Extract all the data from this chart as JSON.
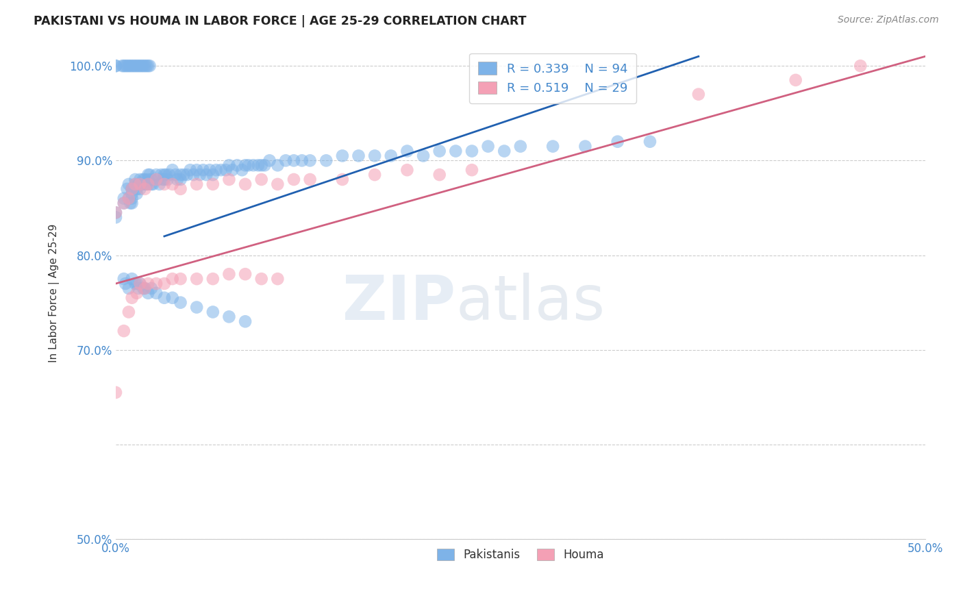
{
  "title": "PAKISTANI VS HOUMA IN LABOR FORCE | AGE 25-29 CORRELATION CHART",
  "source": "Source: ZipAtlas.com",
  "ylabel_label": "In Labor Force | Age 25-29",
  "xlim": [
    0.0,
    0.5
  ],
  "ylim": [
    0.5,
    1.02
  ],
  "xticks": [
    0.0,
    0.1,
    0.2,
    0.3,
    0.4,
    0.5
  ],
  "yticks": [
    0.5,
    0.6,
    0.7,
    0.8,
    0.9,
    1.0
  ],
  "xtick_labels": [
    "0.0%",
    "",
    "",
    "",
    "",
    "50.0%"
  ],
  "ytick_labels": [
    "50.0%",
    "",
    "70.0%",
    "80.0%",
    "90.0%",
    "100.0%"
  ],
  "blue_color": "#7EB3E8",
  "pink_color": "#F4A0B5",
  "blue_line_color": "#2060B0",
  "pink_line_color": "#D06080",
  "legend_R_blue": "R = 0.339",
  "legend_N_blue": "N = 94",
  "legend_R_pink": "R = 0.519",
  "legend_N_pink": "N = 29",
  "blue_line_x": [
    0.03,
    0.36
  ],
  "blue_line_y": [
    0.82,
    1.01
  ],
  "pink_line_x": [
    0.0,
    0.5
  ],
  "pink_line_y": [
    0.77,
    1.01
  ],
  "pakistanis_x": [
    0.0,
    0.0,
    0.005,
    0.005,
    0.007,
    0.008,
    0.008,
    0.009,
    0.01,
    0.01,
    0.01,
    0.01,
    0.01,
    0.012,
    0.012,
    0.013,
    0.013,
    0.014,
    0.015,
    0.015,
    0.015,
    0.016,
    0.017,
    0.018,
    0.018,
    0.019,
    0.02,
    0.02,
    0.02,
    0.021,
    0.022,
    0.022,
    0.023,
    0.025,
    0.026,
    0.027,
    0.028,
    0.029,
    0.03,
    0.03,
    0.031,
    0.032,
    0.033,
    0.035,
    0.037,
    0.038,
    0.04,
    0.04,
    0.042,
    0.044,
    0.046,
    0.048,
    0.05,
    0.052,
    0.054,
    0.056,
    0.058,
    0.06,
    0.062,
    0.065,
    0.068,
    0.07,
    0.072,
    0.075,
    0.078,
    0.08,
    0.082,
    0.085,
    0.088,
    0.09,
    0.092,
    0.095,
    0.1,
    0.105,
    0.11,
    0.115,
    0.12,
    0.13,
    0.14,
    0.15,
    0.16,
    0.17,
    0.18,
    0.19,
    0.2,
    0.21,
    0.22,
    0.23,
    0.24,
    0.25,
    0.27,
    0.29,
    0.31,
    0.33
  ],
  "pakistanis_y": [
    0.845,
    0.84,
    0.855,
    0.86,
    0.87,
    0.875,
    0.86,
    0.855,
    0.87,
    0.865,
    0.86,
    0.855,
    0.87,
    0.875,
    0.88,
    0.87,
    0.865,
    0.875,
    0.88,
    0.875,
    0.87,
    0.875,
    0.88,
    0.875,
    0.88,
    0.875,
    0.885,
    0.88,
    0.875,
    0.885,
    0.875,
    0.88,
    0.875,
    0.885,
    0.88,
    0.875,
    0.885,
    0.88,
    0.885,
    0.88,
    0.885,
    0.88,
    0.885,
    0.89,
    0.885,
    0.88,
    0.885,
    0.88,
    0.885,
    0.885,
    0.89,
    0.885,
    0.89,
    0.885,
    0.89,
    0.885,
    0.89,
    0.885,
    0.89,
    0.89,
    0.89,
    0.895,
    0.89,
    0.895,
    0.89,
    0.895,
    0.895,
    0.895,
    0.895,
    0.895,
    0.895,
    0.9,
    0.895,
    0.9,
    0.9,
    0.9,
    0.9,
    0.9,
    0.905,
    0.905,
    0.905,
    0.905,
    0.91,
    0.905,
    0.91,
    0.91,
    0.91,
    0.915,
    0.91,
    0.915,
    0.915,
    0.915,
    0.92,
    0.92
  ],
  "pakistanis_top_x": [
    0.0,
    0.0,
    0.004,
    0.005,
    0.006,
    0.007,
    0.008,
    0.009,
    0.01,
    0.011,
    0.012,
    0.013,
    0.014,
    0.015,
    0.016,
    0.017,
    0.018,
    0.019,
    0.02,
    0.021
  ],
  "pakistanis_top_y": [
    1.0,
    1.0,
    1.0,
    1.0,
    1.0,
    1.0,
    1.0,
    1.0,
    1.0,
    1.0,
    1.0,
    1.0,
    1.0,
    1.0,
    1.0,
    1.0,
    1.0,
    1.0,
    1.0,
    1.0
  ],
  "pakistanis_low_x": [
    0.005,
    0.006,
    0.008,
    0.01,
    0.012,
    0.013,
    0.014,
    0.015,
    0.017,
    0.018,
    0.02,
    0.022,
    0.025,
    0.03,
    0.035,
    0.04,
    0.05,
    0.06,
    0.07,
    0.08
  ],
  "pakistanis_low_y": [
    0.775,
    0.77,
    0.765,
    0.775,
    0.77,
    0.77,
    0.765,
    0.77,
    0.765,
    0.765,
    0.76,
    0.765,
    0.76,
    0.755,
    0.755,
    0.75,
    0.745,
    0.74,
    0.735,
    0.73
  ],
  "houma_x": [
    0.0,
    0.005,
    0.008,
    0.01,
    0.012,
    0.015,
    0.018,
    0.02,
    0.025,
    0.03,
    0.035,
    0.04,
    0.05,
    0.06,
    0.07,
    0.08,
    0.09,
    0.1,
    0.11,
    0.12,
    0.14,
    0.16,
    0.18,
    0.2,
    0.22,
    0.36,
    0.42,
    0.46
  ],
  "houma_y": [
    0.845,
    0.855,
    0.86,
    0.87,
    0.875,
    0.875,
    0.87,
    0.875,
    0.88,
    0.875,
    0.875,
    0.87,
    0.875,
    0.875,
    0.88,
    0.875,
    0.88,
    0.875,
    0.88,
    0.88,
    0.88,
    0.885,
    0.89,
    0.885,
    0.89,
    0.97,
    0.985,
    1.0
  ],
  "houma_low_x": [
    0.0,
    0.005,
    0.008,
    0.01,
    0.013,
    0.015,
    0.018,
    0.02,
    0.025,
    0.03,
    0.035,
    0.04,
    0.05,
    0.06,
    0.07,
    0.08,
    0.09,
    0.1
  ],
  "houma_low_y": [
    0.655,
    0.72,
    0.74,
    0.755,
    0.76,
    0.77,
    0.765,
    0.77,
    0.77,
    0.77,
    0.775,
    0.775,
    0.775,
    0.775,
    0.78,
    0.78,
    0.775,
    0.775
  ]
}
